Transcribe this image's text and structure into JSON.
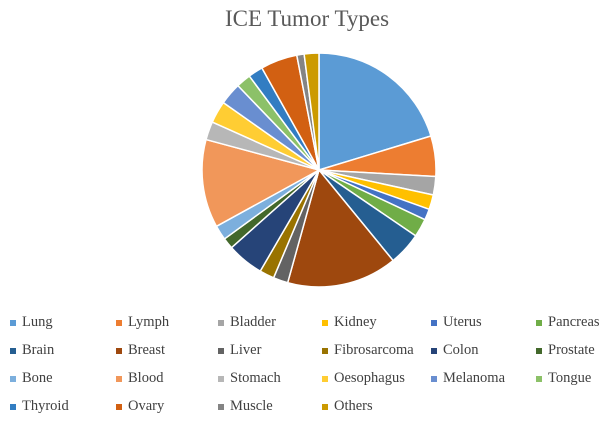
{
  "chart_data": {
    "type": "pie",
    "title": "ICE Tumor Types",
    "legend_position": "bottom",
    "slices": [
      {
        "label": "Lung",
        "value": 20.0,
        "color": "#5B9BD5"
      },
      {
        "label": "Lymph",
        "value": 5.5,
        "color": "#ED7D31"
      },
      {
        "label": "Bladder",
        "value": 2.5,
        "color": "#A5A5A5"
      },
      {
        "label": "Kidney",
        "value": 2.0,
        "color": "#FFC000"
      },
      {
        "label": "Uterus",
        "value": 1.5,
        "color": "#4472C4"
      },
      {
        "label": "Pancreas",
        "value": 2.5,
        "color": "#70AD47"
      },
      {
        "label": "Brain",
        "value": 4.5,
        "color": "#255E91"
      },
      {
        "label": "Breast",
        "value": 15.0,
        "color": "#9E480E"
      },
      {
        "label": "Liver",
        "value": 2.0,
        "color": "#636363"
      },
      {
        "label": "Fibrosarcoma",
        "value": 2.0,
        "color": "#997300"
      },
      {
        "label": "Colon",
        "value": 5.0,
        "color": "#264478"
      },
      {
        "label": "Prostate",
        "value": 1.5,
        "color": "#43682B"
      },
      {
        "label": "Bone",
        "value": 2.0,
        "color": "#7CAFDD"
      },
      {
        "label": "Blood",
        "value": 12.0,
        "color": "#F1975A"
      },
      {
        "label": "Stomach",
        "value": 2.5,
        "color": "#B7B7B7"
      },
      {
        "label": "Oesophagus",
        "value": 3.0,
        "color": "#FFCD33"
      },
      {
        "label": "Melanoma",
        "value": 3.0,
        "color": "#698ED0"
      },
      {
        "label": "Tongue",
        "value": 2.0,
        "color": "#8CC168"
      },
      {
        "label": "Thyroid",
        "value": 2.0,
        "color": "#327DC2"
      },
      {
        "label": "Ovary",
        "value": 5.0,
        "color": "#D26012"
      },
      {
        "label": "Muscle",
        "value": 1.0,
        "color": "#848484"
      },
      {
        "label": "Others",
        "value": 2.0,
        "color": "#CC9A00"
      }
    ]
  }
}
